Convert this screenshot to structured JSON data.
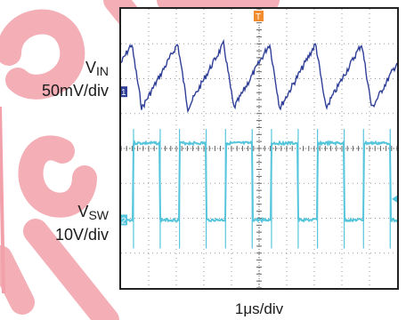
{
  "chart_data": {
    "type": "line",
    "x_scale": "1μs/div",
    "grid": true,
    "divisions": {
      "x": 10,
      "y": 8
    },
    "series": [
      {
        "name": "V_IN",
        "scale": "50mV/div",
        "marker": "1",
        "color": "#2f3f97",
        "waveform": "sawtooth",
        "cycles": 6,
        "low_div": 0.55,
        "high_div": 2.4
      },
      {
        "name": "V_SW",
        "scale": "10V/div",
        "marker": "2",
        "color": "#55c5dc",
        "waveform": "square",
        "cycles": 6,
        "high_div": 2.2,
        "low_div": 0.0
      }
    ],
    "trigger_marker": "T"
  },
  "labels": {
    "vin_main": "V",
    "vin_sub": "IN",
    "vin_scale": "50mV/div",
    "vsw_main": "V",
    "vsw_sub": "SW",
    "vsw_scale": "10V/div",
    "xlabel": "1μs/div"
  },
  "colors": {
    "watermark": "#f2a0aa",
    "grid": "#9a9a9a"
  }
}
